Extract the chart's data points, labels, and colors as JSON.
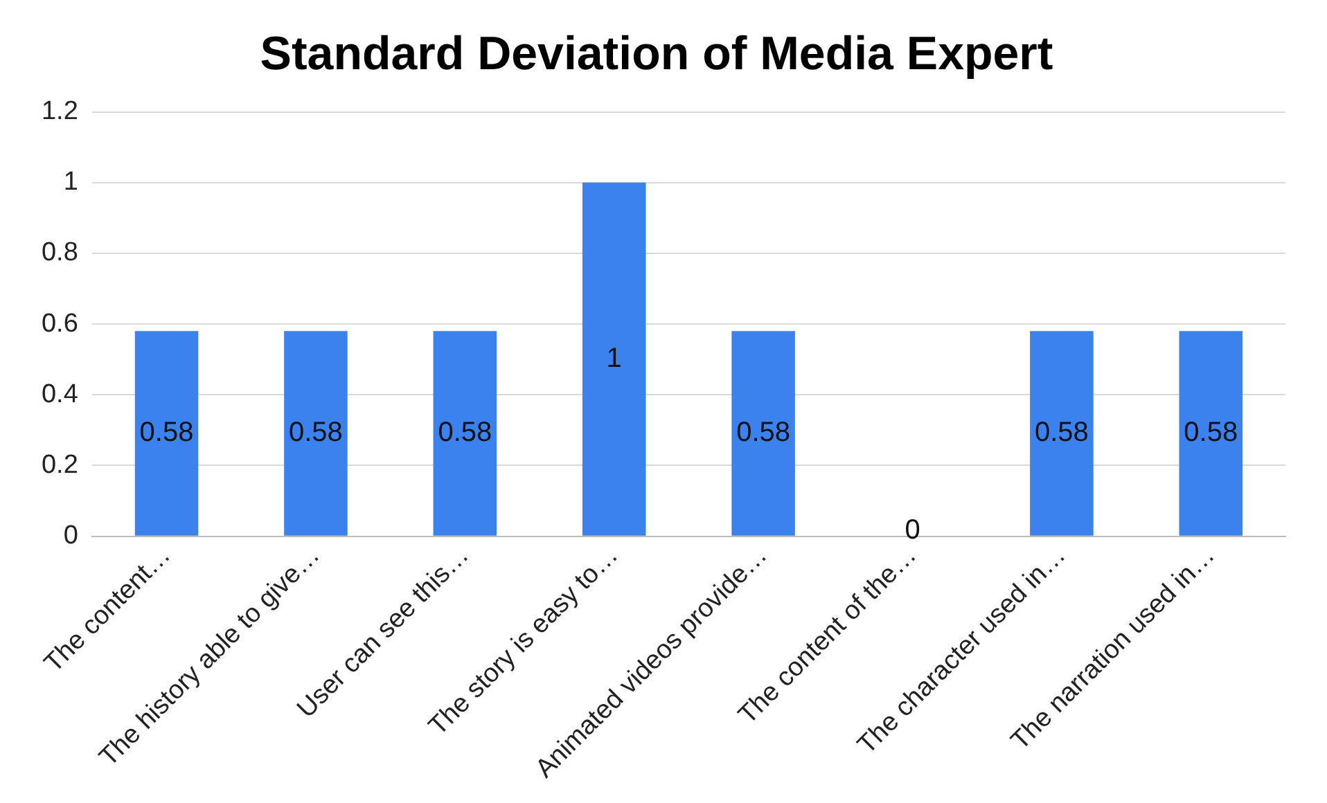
{
  "chart_data": {
    "type": "bar",
    "title": "Standard Deviation of Media Expert",
    "categories": [
      "The content…",
      "The history able to give…",
      "User can see this…",
      "The story is easy to…",
      "Animated videos provide…",
      "The content of the…",
      "The character used in…",
      "The narration used in…"
    ],
    "values": [
      0.58,
      0.58,
      0.58,
      1,
      0.58,
      0,
      0.58,
      0.58
    ],
    "color": "#3b82ee",
    "ylim": [
      0,
      1.2
    ],
    "yticks": [
      0,
      0.2,
      0.4,
      0.6,
      0.8,
      1,
      1.2
    ],
    "grid": "y",
    "data_labels": true,
    "legend": false
  }
}
